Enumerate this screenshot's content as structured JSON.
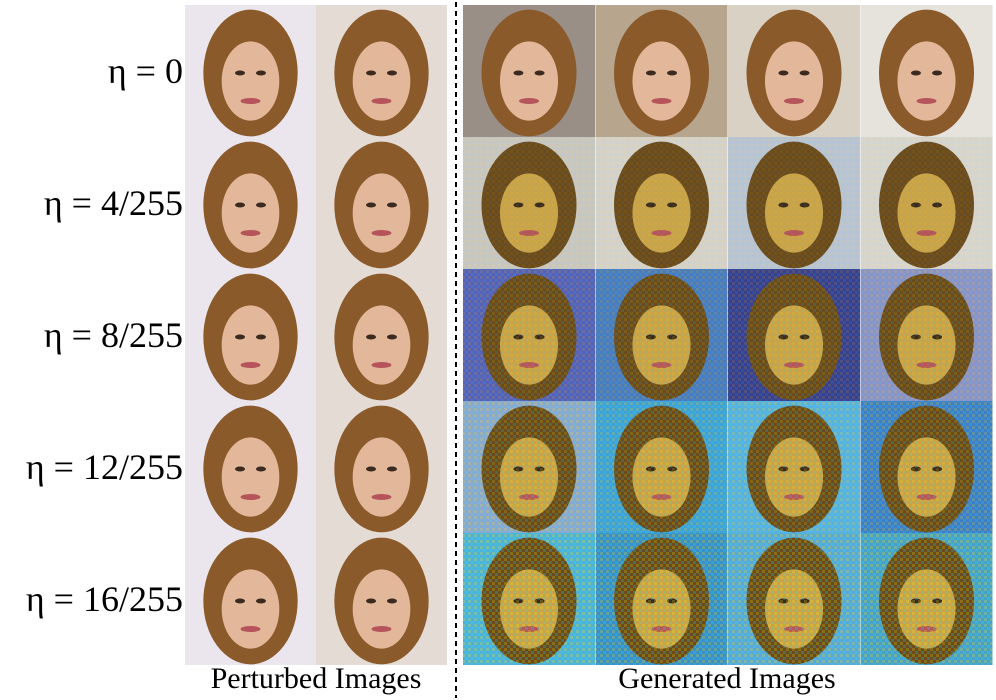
{
  "row_labels": [
    "η = 0",
    "η = 4/255",
    "η = 8/255",
    "η = 12/255",
    "η = 16/255"
  ],
  "captions": [
    "Perturbed Images",
    "Generated Images"
  ]
}
